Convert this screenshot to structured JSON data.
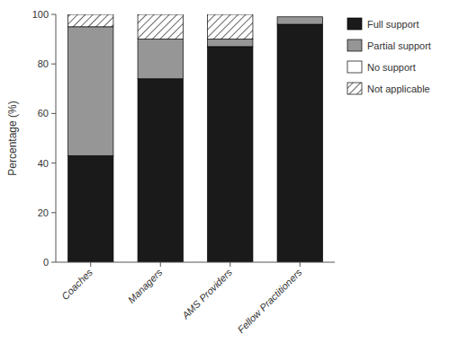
{
  "chart_data": {
    "type": "bar",
    "stacked": true,
    "categories": [
      "Coaches",
      "Managers",
      "AMS Providers",
      "Fellow Practitioners"
    ],
    "series": [
      {
        "name": "Full support",
        "color": "#1a1a1a",
        "values": [
          43,
          74,
          87,
          96
        ]
      },
      {
        "name": "Partial support",
        "color": "#969696",
        "values": [
          52,
          16,
          3,
          3
        ]
      },
      {
        "name": "No support",
        "color": "#ffffff",
        "values": [
          0,
          0,
          0,
          0
        ]
      },
      {
        "name": "Not applicable",
        "color": "#ffffff",
        "values": [
          5,
          10,
          10,
          0
        ]
      }
    ],
    "y_label": "Percentage (%)",
    "ylim": [
      0,
      100
    ],
    "yticks": [
      0,
      20,
      40,
      60,
      80,
      100
    ],
    "grid": false,
    "legend": "upper right"
  }
}
